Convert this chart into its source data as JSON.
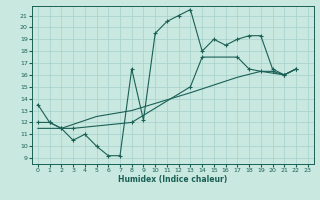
{
  "xlabel": "Humidex (Indice chaleur)",
  "bg_color": "#c8e8e0",
  "grid_color": "#a8d0cc",
  "line_color": "#1a6055",
  "xlim": [
    -0.5,
    23.5
  ],
  "ylim": [
    8.5,
    21.8
  ],
  "xticks": [
    0,
    1,
    2,
    3,
    4,
    5,
    6,
    7,
    8,
    9,
    10,
    11,
    12,
    13,
    14,
    15,
    16,
    17,
    18,
    19,
    20,
    21,
    22,
    23
  ],
  "yticks": [
    9,
    10,
    11,
    12,
    13,
    14,
    15,
    16,
    17,
    18,
    19,
    20,
    21
  ],
  "line1_x": [
    0,
    1,
    2,
    3,
    4,
    5,
    6,
    7,
    8,
    9,
    10,
    11,
    12,
    13,
    14,
    15,
    16,
    17,
    18,
    19,
    20,
    21,
    22
  ],
  "line1_y": [
    13.5,
    12.0,
    11.5,
    10.5,
    11.0,
    10.0,
    9.2,
    9.2,
    16.5,
    12.2,
    19.5,
    20.5,
    21.0,
    21.5,
    18.0,
    19.0,
    18.5,
    19.0,
    19.3,
    19.3,
    16.5,
    16.0,
    16.5
  ],
  "line2_x": [
    0,
    1,
    2,
    3,
    8,
    13,
    14,
    17,
    18,
    19,
    20,
    21,
    22
  ],
  "line2_y": [
    12.0,
    12.0,
    11.5,
    11.5,
    12.0,
    15.0,
    17.5,
    17.5,
    16.5,
    16.3,
    16.3,
    16.0,
    16.5
  ],
  "line3_x": [
    0,
    2,
    5,
    8,
    13,
    17,
    19,
    21,
    22
  ],
  "line3_y": [
    11.5,
    11.5,
    12.5,
    13.0,
    14.5,
    15.8,
    16.3,
    16.0,
    16.5
  ],
  "marker_line1": [
    [
      0,
      1,
      2,
      3,
      4,
      5,
      6,
      7,
      8,
      9,
      10,
      11,
      12,
      13,
      14,
      15,
      16,
      17,
      18,
      19,
      20,
      21,
      22
    ]
  ],
  "marker_line2": [
    [
      0,
      1,
      3,
      8,
      13,
      14,
      17,
      18,
      19,
      20,
      21,
      22
    ]
  ]
}
